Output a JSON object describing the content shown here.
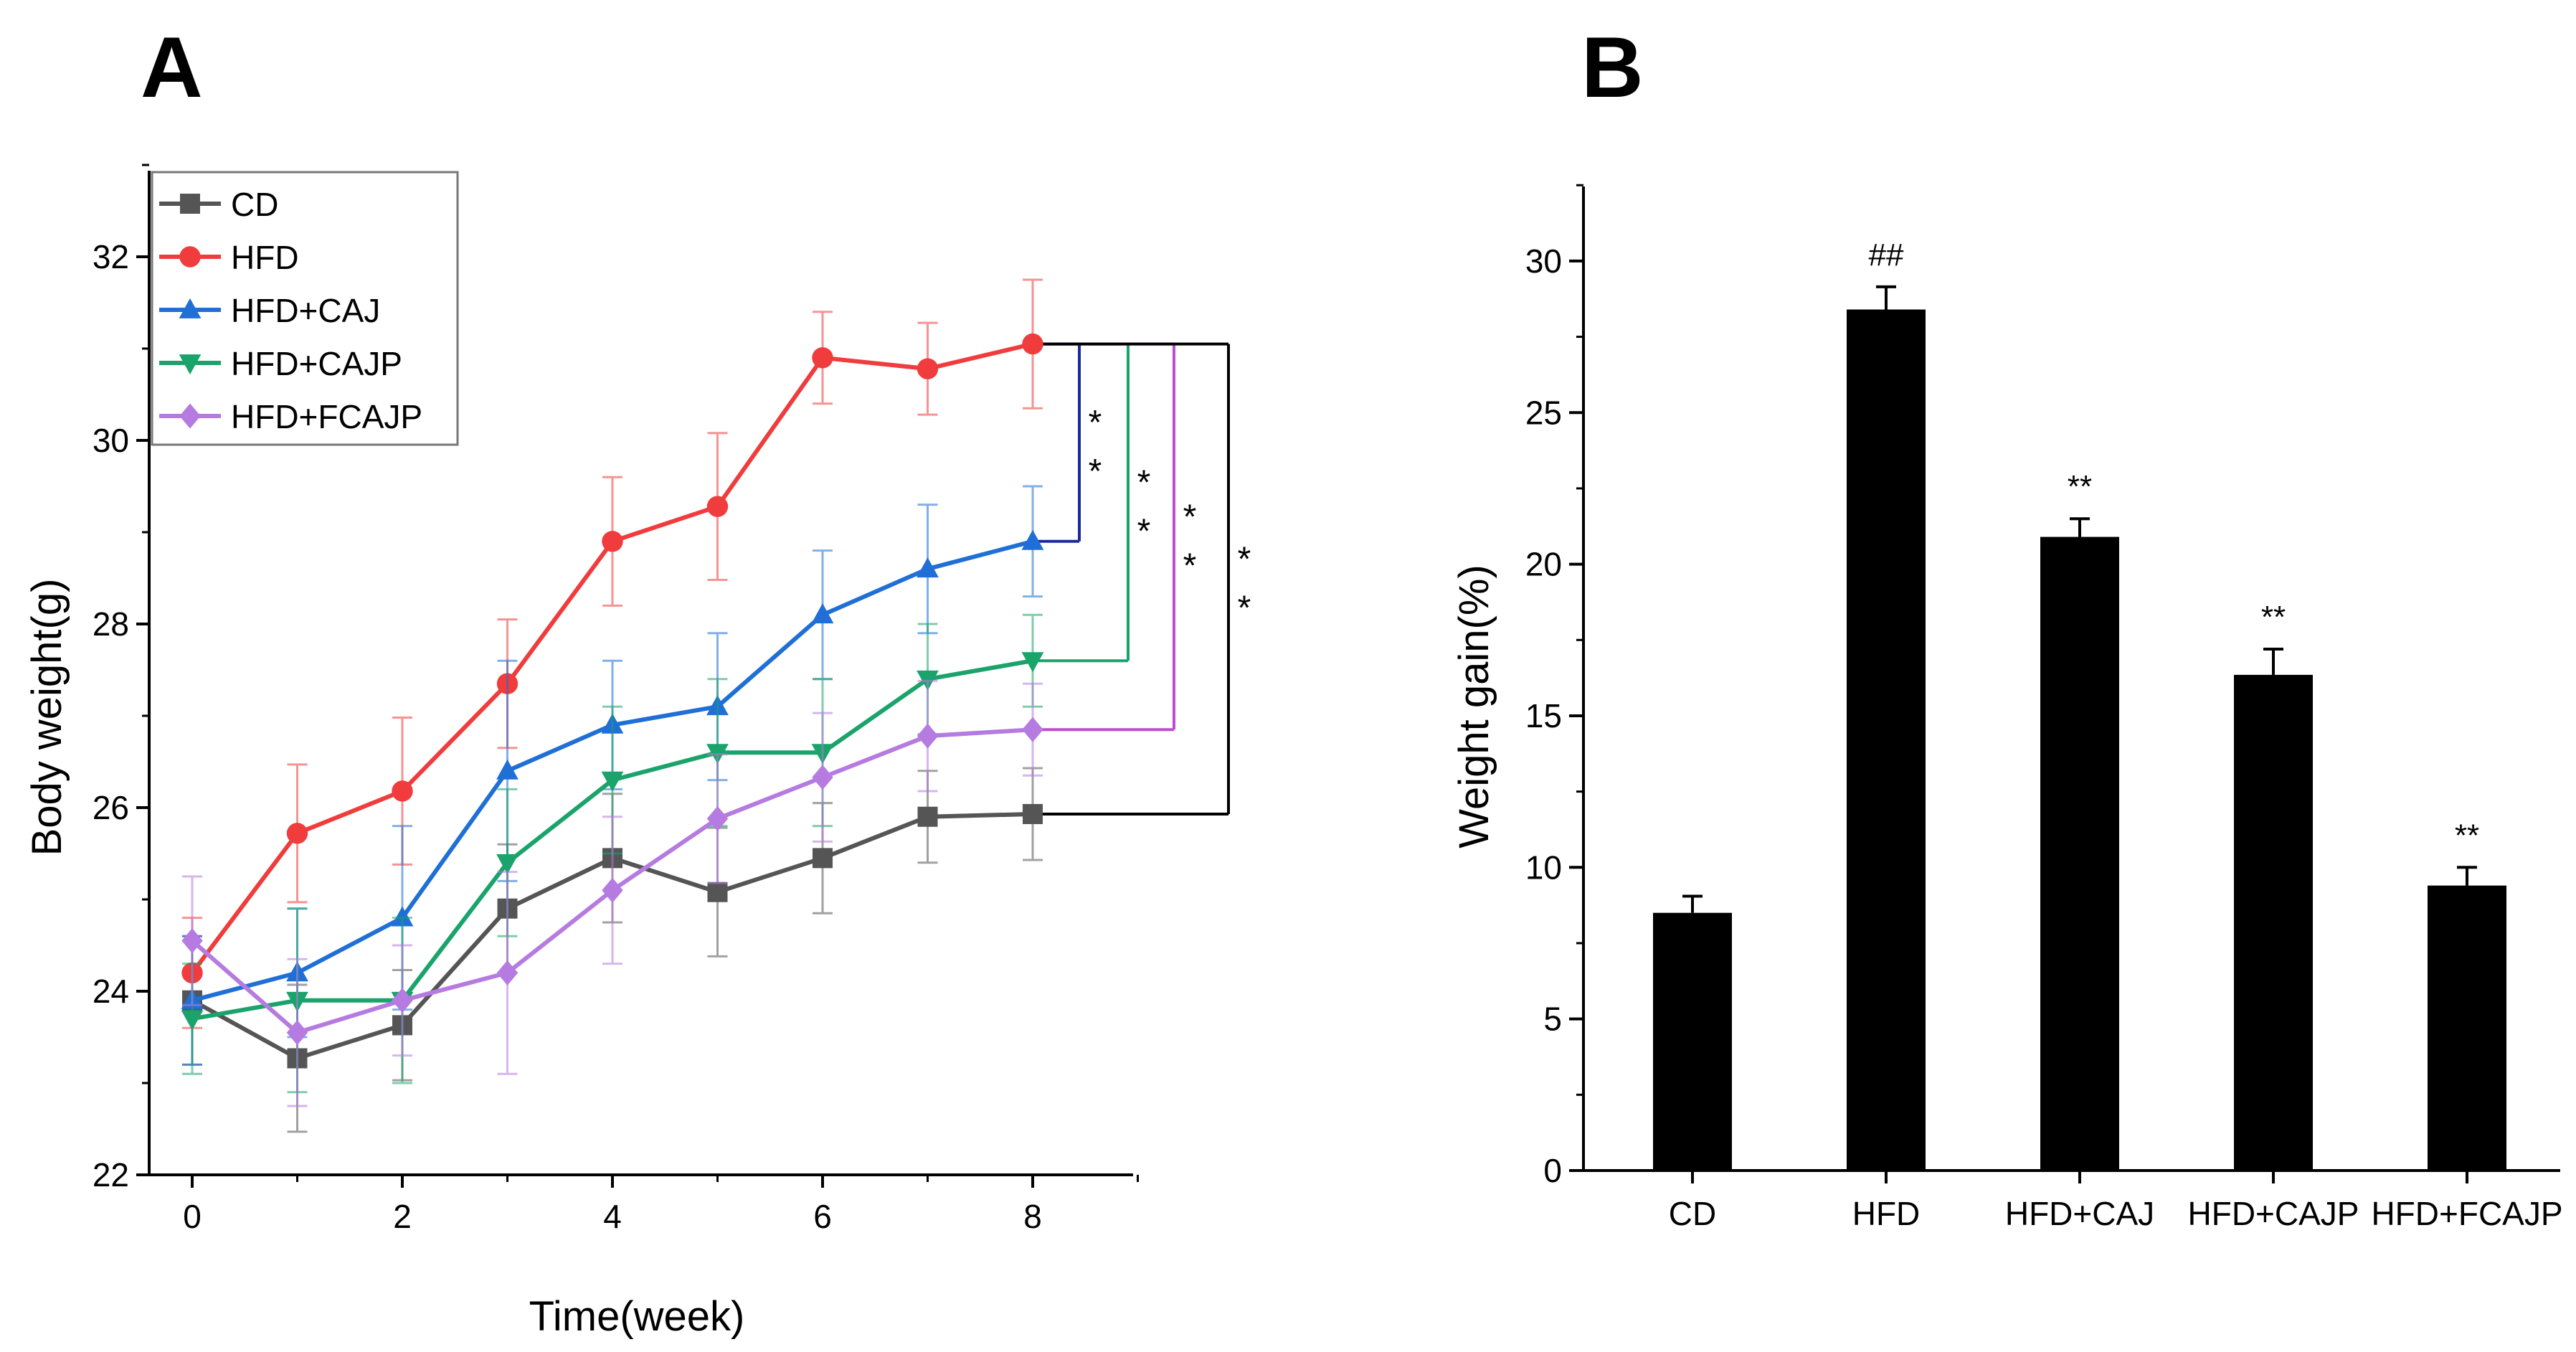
{
  "chart_data": [
    {
      "panel": "A",
      "type": "line",
      "xlabel": "Time(week)",
      "ylabel": "Body weight(g)",
      "xlim": [
        -0.5,
        9.2
      ],
      "ylim": [
        22,
        33
      ],
      "xticks": [
        0,
        2,
        4,
        6,
        8
      ],
      "yticks": [
        22,
        24,
        26,
        28,
        30,
        32
      ],
      "x": [
        0,
        1,
        2,
        3,
        4,
        5,
        6,
        7,
        8
      ],
      "legend_position": "top-left",
      "series": [
        {
          "name": "CD",
          "marker": "square",
          "color": "#555555",
          "values": [
            23.9,
            23.27,
            23.63,
            24.9,
            25.45,
            25.08,
            25.45,
            25.9,
            25.93
          ],
          "errors": [
            0.7,
            0.8,
            0.6,
            0.7,
            0.7,
            0.7,
            0.6,
            0.5,
            0.5
          ]
        },
        {
          "name": "HFD",
          "marker": "circle",
          "color": "#f03c3c",
          "values": [
            24.2,
            25.72,
            26.18,
            27.35,
            28.9,
            29.28,
            30.9,
            30.78,
            31.05
          ],
          "errors": [
            0.6,
            0.75,
            0.8,
            0.7,
            0.7,
            0.8,
            0.5,
            0.5,
            0.7
          ]
        },
        {
          "name": "HFD+CAJ",
          "marker": "triangle-up",
          "color": "#1f6fd6",
          "values": [
            23.9,
            24.2,
            24.8,
            26.4,
            26.9,
            27.1,
            28.1,
            28.6,
            28.9
          ],
          "errors": [
            0.7,
            0.7,
            1.0,
            1.2,
            0.7,
            0.8,
            0.7,
            0.7,
            0.6
          ]
        },
        {
          "name": "HFD+CAJP",
          "marker": "triangle-down",
          "color": "#1aa36a",
          "values": [
            23.7,
            23.9,
            23.9,
            25.4,
            26.3,
            26.6,
            26.6,
            27.4,
            27.6
          ],
          "errors": [
            0.6,
            1.0,
            0.9,
            0.8,
            0.8,
            0.8,
            0.8,
            0.6,
            0.5
          ]
        },
        {
          "name": "HFD+FCAJP",
          "marker": "diamond",
          "color": "#b57be0",
          "values": [
            24.55,
            23.55,
            23.9,
            24.2,
            25.1,
            25.88,
            26.33,
            26.78,
            26.85
          ],
          "errors": [
            0.7,
            0.8,
            0.6,
            1.1,
            0.8,
            0.7,
            0.7,
            0.6,
            0.5
          ]
        }
      ],
      "significance": [
        {
          "from": "HFD",
          "to": "HFD+CAJ",
          "label": "**",
          "color": "#1a2a9a"
        },
        {
          "from": "HFD",
          "to": "HFD+CAJP",
          "label": "**",
          "color": "#1aa36a"
        },
        {
          "from": "HFD",
          "to": "HFD+FCAJP",
          "label": "**",
          "color": "#c04ad4"
        },
        {
          "from": "HFD",
          "to": "CD",
          "label": "**",
          "color": "#000000"
        }
      ]
    },
    {
      "panel": "B",
      "type": "bar",
      "xlabel": "",
      "ylabel": "Weight gain(%)",
      "ylim": [
        0,
        32.5
      ],
      "yticks": [
        0,
        5,
        10,
        15,
        20,
        25,
        30
      ],
      "categories": [
        "CD",
        "HFD",
        "HFD+CAJ",
        "HFD+CAJP",
        "HFD+FCAJP"
      ],
      "values": [
        8.5,
        28.4,
        20.9,
        16.35,
        9.4
      ],
      "errors": [
        0.55,
        0.75,
        0.6,
        0.85,
        0.6
      ],
      "annotations": [
        "",
        "##",
        "**",
        "**",
        "**"
      ],
      "bar_color": "#000000"
    }
  ]
}
